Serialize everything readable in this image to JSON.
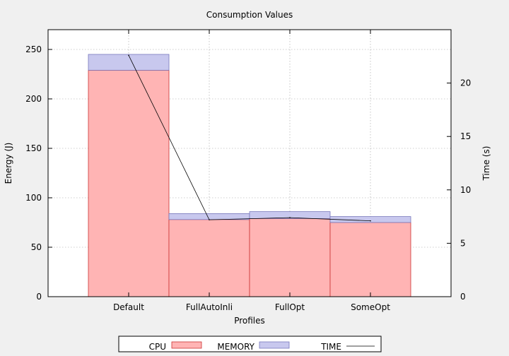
{
  "chart_data": {
    "type": "bar",
    "title": "Consumption Values",
    "xlabel": "Profiles",
    "ylabel": "Energy (J)",
    "y2label": "Time (s)",
    "categories": [
      "Default",
      "FullAutoInli",
      "FullOpt",
      "SomeOpt"
    ],
    "stacked": true,
    "series": [
      {
        "name": "CPU",
        "axis": "left",
        "values": [
          229,
          78,
          79,
          75
        ],
        "color": "#ffb4b4",
        "stroke": "#cc3333"
      },
      {
        "name": "MEMORY",
        "axis": "left",
        "values": [
          16,
          6,
          7,
          6
        ],
        "color": "#c8c8ee",
        "stroke": "#7777bb"
      },
      {
        "name": "TIME",
        "axis": "right",
        "type": "line",
        "values": [
          22.6,
          7.2,
          7.4,
          7.1
        ],
        "color": "#000000"
      }
    ],
    "ylim": [
      0,
      270
    ],
    "yticks": [
      0,
      50,
      100,
      150,
      200,
      250
    ],
    "y2lim": [
      0,
      25
    ],
    "y2ticks": [
      0,
      5,
      10,
      15,
      20
    ],
    "grid": true,
    "legend_position": "bottom"
  }
}
